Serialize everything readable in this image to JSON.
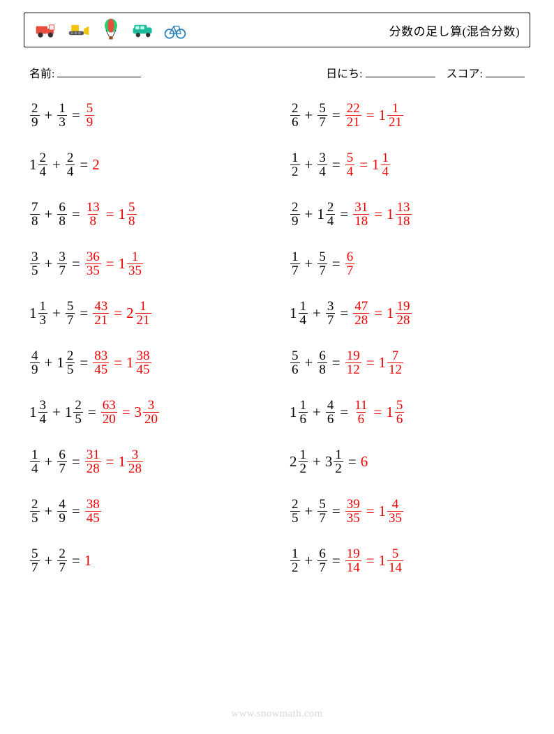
{
  "title": "分数の足し算(混合分数)",
  "meta": {
    "name_label": "名前:",
    "date_label": "日にち:",
    "score_label": "スコア:",
    "name_blank_width": 120,
    "date_blank_width": 100,
    "score_blank_width": 56
  },
  "colors": {
    "answer": "#ee0000",
    "text": "#000000",
    "watermark": "#d9d9d9"
  },
  "watermark": "www.snowmath.com",
  "operator": "+",
  "equals": "=",
  "problems": [
    {
      "a": {
        "w": null,
        "n": 2,
        "d": 9
      },
      "b": {
        "w": null,
        "n": 1,
        "d": 3
      },
      "ans": [
        {
          "type": "frac",
          "n": 5,
          "d": 9
        }
      ]
    },
    {
      "a": {
        "w": null,
        "n": 2,
        "d": 6
      },
      "b": {
        "w": null,
        "n": 5,
        "d": 7
      },
      "ans": [
        {
          "type": "frac",
          "n": 22,
          "d": 21
        },
        {
          "type": "mixed",
          "w": 1,
          "n": 1,
          "d": 21
        }
      ]
    },
    {
      "a": {
        "w": 1,
        "n": 2,
        "d": 4
      },
      "b": {
        "w": null,
        "n": 2,
        "d": 4
      },
      "ans": [
        {
          "type": "int",
          "v": 2
        }
      ]
    },
    {
      "a": {
        "w": null,
        "n": 1,
        "d": 2
      },
      "b": {
        "w": null,
        "n": 3,
        "d": 4
      },
      "ans": [
        {
          "type": "frac",
          "n": 5,
          "d": 4
        },
        {
          "type": "mixed",
          "w": 1,
          "n": 1,
          "d": 4
        }
      ]
    },
    {
      "a": {
        "w": null,
        "n": 7,
        "d": 8
      },
      "b": {
        "w": null,
        "n": 6,
        "d": 8
      },
      "ans": [
        {
          "type": "frac",
          "n": 13,
          "d": 8
        },
        {
          "type": "mixed",
          "w": 1,
          "n": 5,
          "d": 8
        }
      ]
    },
    {
      "a": {
        "w": null,
        "n": 2,
        "d": 9
      },
      "b": {
        "w": 1,
        "n": 2,
        "d": 4
      },
      "ans": [
        {
          "type": "frac",
          "n": 31,
          "d": 18
        },
        {
          "type": "mixed",
          "w": 1,
          "n": 13,
          "d": 18
        }
      ]
    },
    {
      "a": {
        "w": null,
        "n": 3,
        "d": 5
      },
      "b": {
        "w": null,
        "n": 3,
        "d": 7
      },
      "ans": [
        {
          "type": "frac",
          "n": 36,
          "d": 35
        },
        {
          "type": "mixed",
          "w": 1,
          "n": 1,
          "d": 35
        }
      ]
    },
    {
      "a": {
        "w": null,
        "n": 1,
        "d": 7
      },
      "b": {
        "w": null,
        "n": 5,
        "d": 7
      },
      "ans": [
        {
          "type": "frac",
          "n": 6,
          "d": 7
        }
      ]
    },
    {
      "a": {
        "w": 1,
        "n": 1,
        "d": 3
      },
      "b": {
        "w": null,
        "n": 5,
        "d": 7
      },
      "ans": [
        {
          "type": "frac",
          "n": 43,
          "d": 21
        },
        {
          "type": "mixed",
          "w": 2,
          "n": 1,
          "d": 21
        }
      ]
    },
    {
      "a": {
        "w": 1,
        "n": 1,
        "d": 4
      },
      "b": {
        "w": null,
        "n": 3,
        "d": 7
      },
      "ans": [
        {
          "type": "frac",
          "n": 47,
          "d": 28
        },
        {
          "type": "mixed",
          "w": 1,
          "n": 19,
          "d": 28
        }
      ]
    },
    {
      "a": {
        "w": null,
        "n": 4,
        "d": 9
      },
      "b": {
        "w": 1,
        "n": 2,
        "d": 5
      },
      "ans": [
        {
          "type": "frac",
          "n": 83,
          "d": 45
        },
        {
          "type": "mixed",
          "w": 1,
          "n": 38,
          "d": 45
        }
      ]
    },
    {
      "a": {
        "w": null,
        "n": 5,
        "d": 6
      },
      "b": {
        "w": null,
        "n": 6,
        "d": 8
      },
      "ans": [
        {
          "type": "frac",
          "n": 19,
          "d": 12
        },
        {
          "type": "mixed",
          "w": 1,
          "n": 7,
          "d": 12
        }
      ]
    },
    {
      "a": {
        "w": 1,
        "n": 3,
        "d": 4
      },
      "b": {
        "w": 1,
        "n": 2,
        "d": 5
      },
      "ans": [
        {
          "type": "frac",
          "n": 63,
          "d": 20
        },
        {
          "type": "mixed",
          "w": 3,
          "n": 3,
          "d": 20
        }
      ]
    },
    {
      "a": {
        "w": 1,
        "n": 1,
        "d": 6
      },
      "b": {
        "w": null,
        "n": 4,
        "d": 6
      },
      "ans": [
        {
          "type": "frac",
          "n": 11,
          "d": 6
        },
        {
          "type": "mixed",
          "w": 1,
          "n": 5,
          "d": 6
        }
      ]
    },
    {
      "a": {
        "w": null,
        "n": 1,
        "d": 4
      },
      "b": {
        "w": null,
        "n": 6,
        "d": 7
      },
      "ans": [
        {
          "type": "frac",
          "n": 31,
          "d": 28
        },
        {
          "type": "mixed",
          "w": 1,
          "n": 3,
          "d": 28
        }
      ]
    },
    {
      "a": {
        "w": 2,
        "n": 1,
        "d": 2
      },
      "b": {
        "w": 3,
        "n": 1,
        "d": 2
      },
      "ans": [
        {
          "type": "int",
          "v": 6
        }
      ]
    },
    {
      "a": {
        "w": null,
        "n": 2,
        "d": 5
      },
      "b": {
        "w": null,
        "n": 4,
        "d": 9
      },
      "ans": [
        {
          "type": "frac",
          "n": 38,
          "d": 45
        }
      ]
    },
    {
      "a": {
        "w": null,
        "n": 2,
        "d": 5
      },
      "b": {
        "w": null,
        "n": 5,
        "d": 7
      },
      "ans": [
        {
          "type": "frac",
          "n": 39,
          "d": 35
        },
        {
          "type": "mixed",
          "w": 1,
          "n": 4,
          "d": 35
        }
      ]
    },
    {
      "a": {
        "w": null,
        "n": 5,
        "d": 7
      },
      "b": {
        "w": null,
        "n": 2,
        "d": 7
      },
      "ans": [
        {
          "type": "int",
          "v": 1
        }
      ]
    },
    {
      "a": {
        "w": null,
        "n": 1,
        "d": 2
      },
      "b": {
        "w": null,
        "n": 6,
        "d": 7
      },
      "ans": [
        {
          "type": "frac",
          "n": 19,
          "d": 14
        },
        {
          "type": "mixed",
          "w": 1,
          "n": 5,
          "d": 14
        }
      ]
    }
  ],
  "icons": [
    {
      "name": "truck-icon"
    },
    {
      "name": "bulldozer-icon"
    },
    {
      "name": "balloon-icon"
    },
    {
      "name": "van-icon"
    },
    {
      "name": "bicycle-icon"
    }
  ]
}
